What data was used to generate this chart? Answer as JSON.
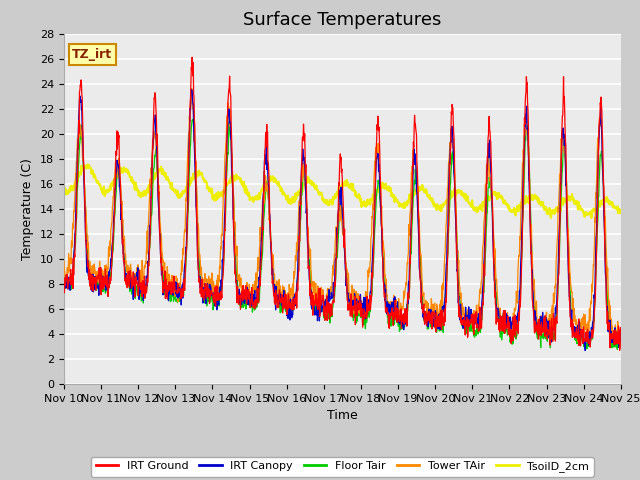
{
  "title": "Surface Temperatures",
  "xlabel": "Time",
  "ylabel": "Temperature (C)",
  "ylim": [
    0,
    28
  ],
  "yticks": [
    0,
    2,
    4,
    6,
    8,
    10,
    12,
    14,
    16,
    18,
    20,
    22,
    24,
    26,
    28
  ],
  "x_labels": [
    "Nov 10",
    "Nov 11",
    "Nov 12",
    "Nov 13",
    "Nov 14",
    "Nov 15",
    "Nov 16",
    "Nov 17",
    "Nov 18",
    "Nov 19",
    "Nov 20",
    "Nov 21",
    "Nov 22",
    "Nov 23",
    "Nov 24",
    "Nov 25"
  ],
  "series_colors": {
    "IRT Ground": "#ff0000",
    "IRT Canopy": "#0000cc",
    "Floor Tair": "#00cc00",
    "Tower TAir": "#ff8800",
    "TsoilD_2cm": "#eeee00"
  },
  "annotation_text": "TZ_irt",
  "annotation_bg": "#ffffaa",
  "annotation_border": "#cc8800",
  "fig_bg_color": "#cccccc",
  "plot_bg_color": "#ebebeb",
  "grid_color": "#ffffff",
  "title_fontsize": 13,
  "axis_label_fontsize": 9,
  "tick_fontsize": 8
}
